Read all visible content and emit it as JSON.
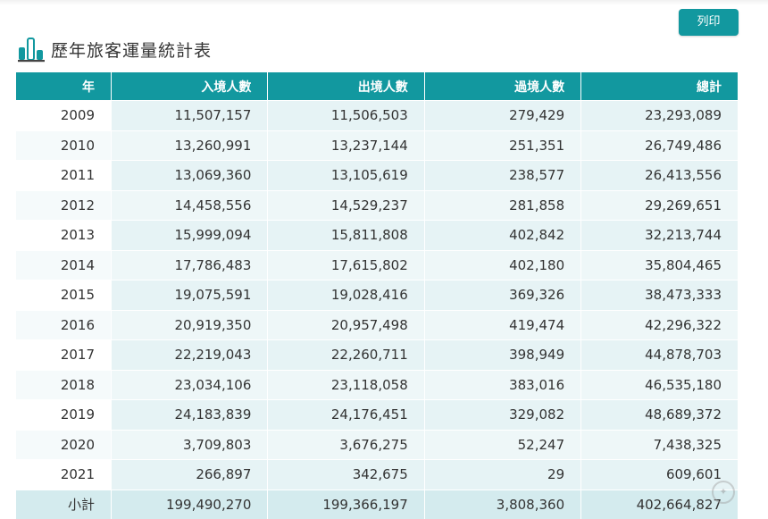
{
  "toolbar": {
    "print_label": "列印"
  },
  "header": {
    "title": "歷年旅客運量統計表",
    "icon": "bar-chart-icon",
    "accent_color": "#12989f"
  },
  "table": {
    "columns": [
      "年",
      "入境人數",
      "出境人數",
      "過境人數",
      "總計"
    ],
    "rows": [
      {
        "year": "2009",
        "arrivals": "11,507,157",
        "departures": "11,506,503",
        "transit": "279,429",
        "total": "23,293,089"
      },
      {
        "year": "2010",
        "arrivals": "13,260,991",
        "departures": "13,237,144",
        "transit": "251,351",
        "total": "26,749,486"
      },
      {
        "year": "2011",
        "arrivals": "13,069,360",
        "departures": "13,105,619",
        "transit": "238,577",
        "total": "26,413,556"
      },
      {
        "year": "2012",
        "arrivals": "14,458,556",
        "departures": "14,529,237",
        "transit": "281,858",
        "total": "29,269,651"
      },
      {
        "year": "2013",
        "arrivals": "15,999,094",
        "departures": "15,811,808",
        "transit": "402,842",
        "total": "32,213,744"
      },
      {
        "year": "2014",
        "arrivals": "17,786,483",
        "departures": "17,615,802",
        "transit": "402,180",
        "total": "35,804,465"
      },
      {
        "year": "2015",
        "arrivals": "19,075,591",
        "departures": "19,028,416",
        "transit": "369,326",
        "total": "38,473,333"
      },
      {
        "year": "2016",
        "arrivals": "20,919,350",
        "departures": "20,957,498",
        "transit": "419,474",
        "total": "42,296,322"
      },
      {
        "year": "2017",
        "arrivals": "22,219,043",
        "departures": "22,260,711",
        "transit": "398,949",
        "total": "44,878,703"
      },
      {
        "year": "2018",
        "arrivals": "23,034,106",
        "departures": "23,118,058",
        "transit": "383,016",
        "total": "46,535,180"
      },
      {
        "year": "2019",
        "arrivals": "24,183,839",
        "departures": "24,176,451",
        "transit": "329,082",
        "total": "48,689,372"
      },
      {
        "year": "2020",
        "arrivals": "3,709,803",
        "departures": "3,676,275",
        "transit": "52,247",
        "total": "7,438,325"
      },
      {
        "year": "2021",
        "arrivals": "266,897",
        "departures": "342,675",
        "transit": "29",
        "total": "609,601"
      }
    ],
    "subtotal": {
      "label": "小計",
      "arrivals": "199,490,270",
      "departures": "199,366,197",
      "transit": "3,808,360",
      "total": "402,664,827"
    }
  }
}
